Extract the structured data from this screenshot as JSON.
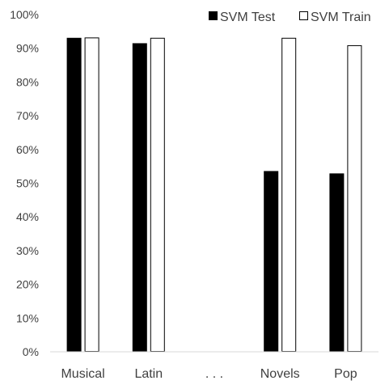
{
  "chart_data": {
    "type": "bar",
    "categories": [
      "Musical",
      "Latin",
      ". . .",
      "Novels",
      "Pop"
    ],
    "series": [
      {
        "name": "SVM Test",
        "values": [
          93.1,
          91.5,
          null,
          53.6,
          52.9
        ],
        "fill": "#000000"
      },
      {
        "name": "SVM Train",
        "values": [
          93.2,
          93.1,
          null,
          93.1,
          90.9
        ],
        "fill": "#ffffff"
      }
    ],
    "title": "",
    "xlabel": "",
    "ylabel": "",
    "ylim": [
      0,
      100
    ],
    "yticks": [
      "0%",
      "10%",
      "20%",
      "30%",
      "40%",
      "50%",
      "60%",
      "70%",
      "80%",
      "90%",
      "100%"
    ],
    "grid": false,
    "legend_position": "top-right",
    "axis_color": "#d9d9d9",
    "bar_stroke": "#000000"
  }
}
